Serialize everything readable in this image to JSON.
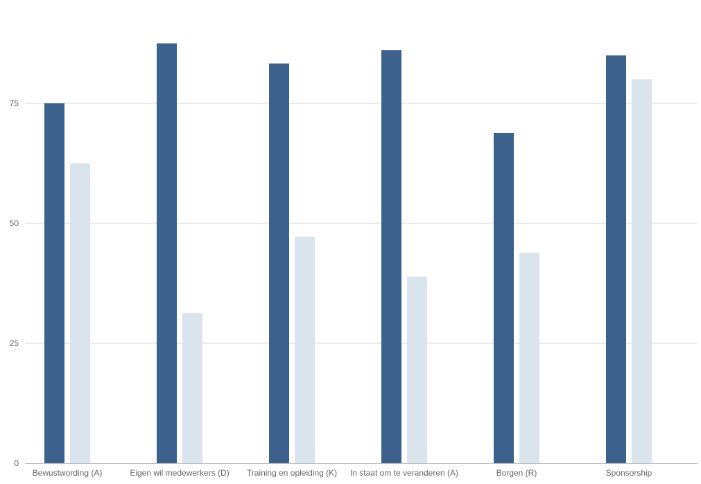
{
  "chart_data": {
    "type": "bar",
    "categories": [
      "Bewustwording (A)",
      "Eigen wil medewerkers (D)",
      "Training en opleiding (K)",
      "In staat om te veranderen (A)",
      "Borgen (R)",
      "Sponsorship"
    ],
    "series": [
      {
        "color": "#3c618c",
        "values": [
          75,
          87.5,
          83.3,
          86.1,
          68.8,
          85
        ]
      },
      {
        "color": "#d9e4ec",
        "values": [
          62.5,
          31.3,
          47.2,
          38.9,
          43.8,
          80
        ]
      }
    ],
    "title": "",
    "xlabel": "",
    "ylabel": "",
    "ylim": [
      0,
      90
    ],
    "yticks": [
      0,
      25,
      50,
      75
    ],
    "grid": true,
    "legend": "none"
  }
}
